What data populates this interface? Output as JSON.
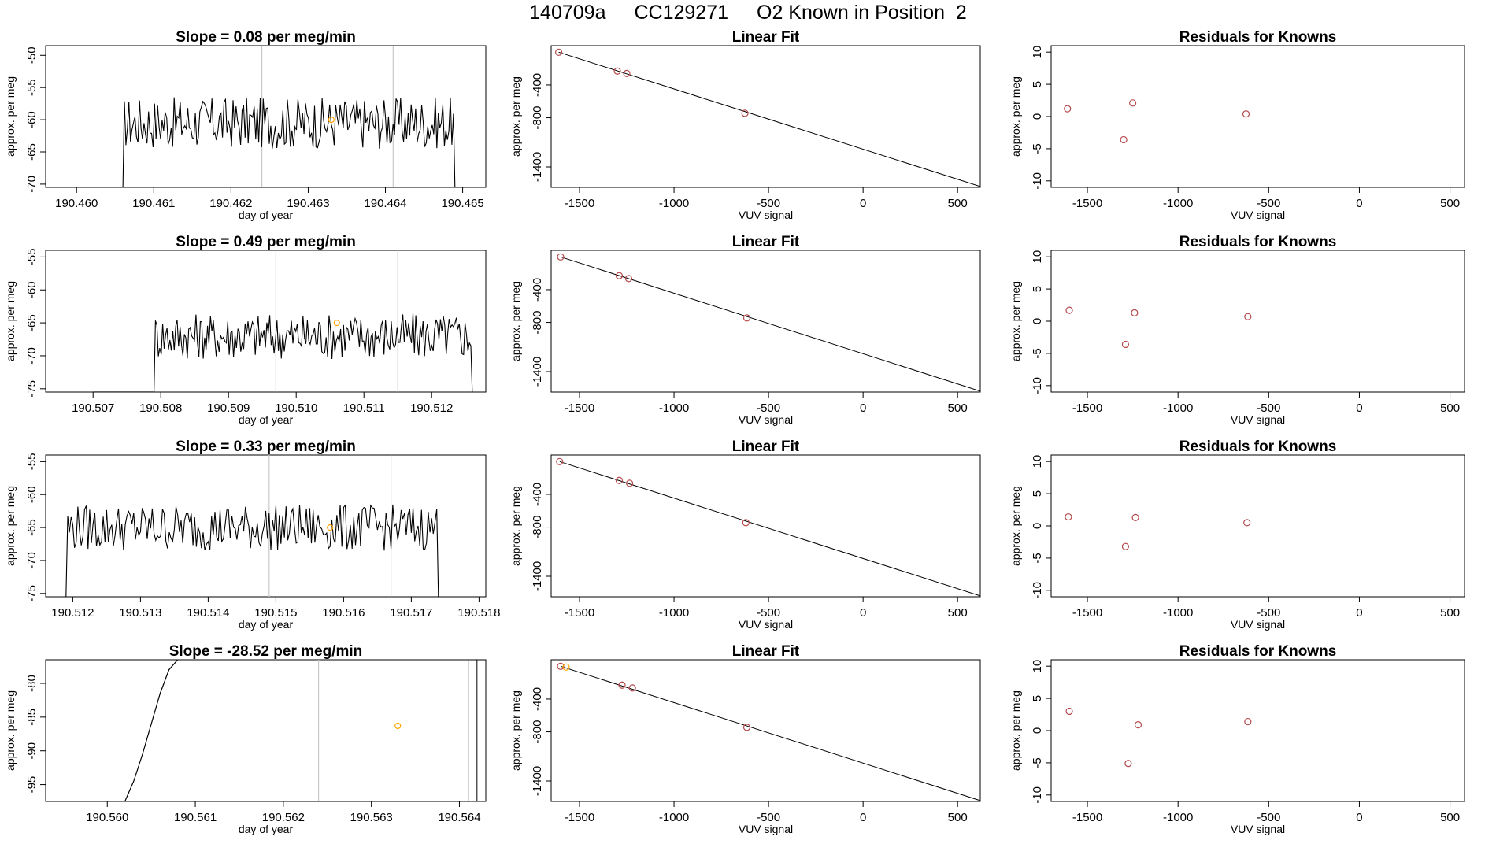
{
  "page_title": {
    "run_id": "140709a",
    "cylinder_id": "CC129271",
    "description": "O2 Known in Position  2"
  },
  "colors": {
    "trace": "#000000",
    "known_points": "#b5494b",
    "highlight_point": "#ffa500",
    "marker_lines": "#c8c8c8"
  },
  "chart_data": [
    {
      "type": "line",
      "panel": "timeseries-1",
      "title": "Slope =  0.08  per meg/min",
      "xlabel": "day of year",
      "ylabel": "approx. per meg",
      "xlim": [
        190.4596,
        190.4653
      ],
      "ylim": [
        -70.5,
        -48.5
      ],
      "xticks": [
        190.46,
        190.461,
        190.462,
        190.463,
        190.464,
        190.465
      ],
      "xtick_labels": [
        "190.460",
        "190.461",
        "190.462",
        "190.463",
        "190.464",
        "190.465"
      ],
      "yticks": [
        -70,
        -65,
        -60,
        -55,
        -50
      ],
      "ytick_labels": [
        "-70",
        "-65",
        "-60",
        "-55",
        "-50"
      ],
      "trace_x_range": [
        190.4606,
        190.4649
      ],
      "trace_y_mean": -60.5,
      "trace_y_amp": 4.0,
      "pre_trace": {
        "x": [
          190.46,
          190.4605,
          190.4606
        ],
        "y": [
          -70.5,
          -70.5,
          -70.5
        ]
      },
      "marker_lines_x": [
        190.4624,
        190.4641
      ],
      "highlight_point": {
        "x": 190.4633,
        "y": -60.0
      }
    },
    {
      "type": "line",
      "panel": "timeseries-2",
      "title": "Slope =  0.49  per meg/min",
      "xlabel": "day of year",
      "ylabel": "approx. per meg",
      "xlim": [
        190.5063,
        190.5128
      ],
      "ylim": [
        -75.5,
        -54.0
      ],
      "xticks": [
        190.507,
        190.508,
        190.509,
        190.51,
        190.511,
        190.512
      ],
      "xtick_labels": [
        "190.507",
        "190.508",
        "190.509",
        "190.510",
        "190.511",
        "190.512"
      ],
      "yticks": [
        -75,
        -70,
        -65,
        -60,
        -55
      ],
      "ytick_labels": [
        "-75",
        "-70",
        "-65",
        "-60",
        "-55"
      ],
      "trace_x_range": [
        190.5079,
        190.5126
      ],
      "trace_y_mean": -67.0,
      "trace_y_amp": 3.5,
      "pre_trace": {
        "x": [
          190.507,
          190.5078,
          190.5079
        ],
        "y": [
          -75.5,
          -75.5,
          -75.5
        ]
      },
      "marker_lines_x": [
        190.5097,
        190.5115
      ],
      "highlight_point": {
        "x": 190.5106,
        "y": -65.0
      }
    },
    {
      "type": "line",
      "panel": "timeseries-3",
      "title": "Slope =  0.33  per meg/min",
      "xlabel": "day of year",
      "ylabel": "approx. per meg",
      "xlim": [
        190.5116,
        190.5181
      ],
      "ylim": [
        -75.5,
        -54.0
      ],
      "xticks": [
        190.512,
        190.513,
        190.514,
        190.515,
        190.516,
        190.517,
        190.518
      ],
      "xtick_labels": [
        "190.512",
        "190.513",
        "190.514",
        "190.515",
        "190.516",
        "190.517",
        "190.518"
      ],
      "yticks": [
        -75,
        -70,
        -65,
        -60,
        -55
      ],
      "ytick_labels": [
        "-75",
        "-70",
        "-65",
        "-60",
        "-55"
      ],
      "trace_x_range": [
        190.5119,
        190.5174
      ],
      "trace_y_mean": -65.0,
      "trace_y_amp": 3.5,
      "pre_trace": null,
      "marker_lines_x": [
        190.5149,
        190.5167
      ],
      "highlight_point": {
        "x": 190.5158,
        "y": -65.0
      }
    },
    {
      "type": "line",
      "panel": "timeseries-4",
      "title": "Slope =  -28.52  per meg/min",
      "xlabel": "day of year",
      "ylabel": "approx. per meg",
      "xlim": [
        190.5593,
        190.5643
      ],
      "ylim": [
        -97.5,
        -76.5
      ],
      "xticks": [
        190.56,
        190.561,
        190.562,
        190.563,
        190.564
      ],
      "xtick_labels": [
        "190.560",
        "190.561",
        "190.562",
        "190.563",
        "190.564"
      ],
      "yticks": [
        -95,
        -90,
        -85,
        -80
      ],
      "ytick_labels": [
        "-95",
        "-90",
        "-85",
        "-80"
      ],
      "ramp": {
        "x": [
          190.5602,
          190.5603,
          190.5604,
          190.5605,
          190.5606,
          190.5607,
          190.5608
        ],
        "y": [
          -97.5,
          -94.5,
          -90.5,
          -86.0,
          -81.5,
          -78.0,
          -76.5
        ]
      },
      "marker_lines_x": [
        190.5624,
        190.5641
      ],
      "extra_lines_x": [
        190.5641,
        190.5642
      ],
      "highlight_point": {
        "x": 190.5633,
        "y": -86.3
      }
    },
    {
      "type": "scatter",
      "panel": "linear-fit-1",
      "title": "Linear Fit",
      "xlabel": "VUV signal",
      "ylabel": "approx. per meg",
      "xlim": [
        -1650,
        620
      ],
      "ylim": [
        -1650,
        80
      ],
      "xticks": [
        -1500,
        -1000,
        -500,
        0,
        500
      ],
      "xtick_labels": [
        "-1500",
        "-1000",
        "-500",
        "0",
        "500"
      ],
      "yticks": [
        -1400,
        -800,
        -400
      ],
      "ytick_labels": [
        "-1400",
        "-800",
        "-400"
      ],
      "x": [
        -1610,
        -1300,
        -1250,
        -625
      ],
      "y": [
        0,
        -230,
        -260,
        -745
      ],
      "fit_line": {
        "x": [
          -1610,
          620
        ],
        "y": [
          0,
          -1640
        ]
      }
    },
    {
      "type": "scatter",
      "panel": "linear-fit-2",
      "title": "Linear Fit",
      "xlabel": "VUV signal",
      "ylabel": "approx. per meg",
      "xlim": [
        -1650,
        620
      ],
      "ylim": [
        -1650,
        80
      ],
      "xticks": [
        -1500,
        -1000,
        -500,
        0,
        500
      ],
      "xtick_labels": [
        "-1500",
        "-1000",
        "-500",
        "0",
        "500"
      ],
      "yticks": [
        -1400,
        -800,
        -400
      ],
      "ytick_labels": [
        "-1400",
        "-800",
        "-400"
      ],
      "x": [
        -1600,
        -1290,
        -1240,
        -615
      ],
      "y": [
        0,
        -230,
        -265,
        -745
      ],
      "fit_line": {
        "x": [
          -1600,
          620
        ],
        "y": [
          0,
          -1640
        ]
      }
    },
    {
      "type": "scatter",
      "panel": "linear-fit-3",
      "title": "Linear Fit",
      "xlabel": "VUV signal",
      "ylabel": "approx. per meg",
      "xlim": [
        -1650,
        620
      ],
      "ylim": [
        -1650,
        80
      ],
      "xticks": [
        -1500,
        -1000,
        -500,
        0,
        500
      ],
      "xtick_labels": [
        "-1500",
        "-1000",
        "-500",
        "0",
        "500"
      ],
      "yticks": [
        -1400,
        -800,
        -400
      ],
      "ytick_labels": [
        "-1400",
        "-800",
        "-400"
      ],
      "x": [
        -1605,
        -1290,
        -1235,
        -620
      ],
      "y": [
        0,
        -230,
        -265,
        -745
      ],
      "fit_line": {
        "x": [
          -1605,
          620
        ],
        "y": [
          0,
          -1640
        ]
      }
    },
    {
      "type": "scatter",
      "panel": "linear-fit-4",
      "title": "Linear Fit",
      "xlabel": "VUV signal",
      "ylabel": "approx. per meg",
      "xlim": [
        -1650,
        620
      ],
      "ylim": [
        -1650,
        80
      ],
      "xticks": [
        -1500,
        -1000,
        -500,
        0,
        500
      ],
      "xtick_labels": [
        "-1500",
        "-1000",
        "-500",
        "0",
        "500"
      ],
      "yticks": [
        -1400,
        -800,
        -400
      ],
      "ytick_labels": [
        "-1400",
        "-800",
        "-400"
      ],
      "x": [
        -1600,
        -1275,
        -1220,
        -615
      ],
      "y": [
        0,
        -230,
        -265,
        -745
      ],
      "fit_line": {
        "x": [
          -1600,
          620
        ],
        "y": [
          0,
          -1640
        ]
      },
      "highlight_x": -1600,
      "highlight_y": 0
    },
    {
      "type": "scatter",
      "panel": "residuals-1",
      "title": "Residuals for Knowns",
      "xlabel": "VUV signal",
      "ylabel": "approx. per meg",
      "xlim": [
        -1700,
        580
      ],
      "ylim": [
        -11,
        11
      ],
      "xticks": [
        -1500,
        -1000,
        -500,
        0,
        500
      ],
      "xtick_labels": [
        "-1500",
        "-1000",
        "-500",
        "0",
        "500"
      ],
      "yticks": [
        -10,
        -5,
        0,
        5,
        10
      ],
      "ytick_labels": [
        "-10",
        "-5",
        "0",
        "5",
        "10"
      ],
      "x": [
        -1610,
        -1300,
        -1250,
        -625
      ],
      "y": [
        1.2,
        -3.6,
        2.1,
        0.4
      ]
    },
    {
      "type": "scatter",
      "panel": "residuals-2",
      "title": "Residuals for Knowns",
      "xlabel": "VUV signal",
      "ylabel": "approx. per meg",
      "xlim": [
        -1700,
        580
      ],
      "ylim": [
        -11,
        11
      ],
      "xticks": [
        -1500,
        -1000,
        -500,
        0,
        500
      ],
      "xtick_labels": [
        "-1500",
        "-1000",
        "-500",
        "0",
        "500"
      ],
      "yticks": [
        -10,
        -5,
        0,
        5,
        10
      ],
      "ytick_labels": [
        "-10",
        "-5",
        "0",
        "5",
        "10"
      ],
      "x": [
        -1600,
        -1290,
        -1240,
        -615
      ],
      "y": [
        1.7,
        -3.6,
        1.3,
        0.7
      ]
    },
    {
      "type": "scatter",
      "panel": "residuals-3",
      "title": "Residuals for Knowns",
      "xlabel": "VUV signal",
      "ylabel": "approx. per meg",
      "xlim": [
        -1700,
        580
      ],
      "ylim": [
        -11,
        11
      ],
      "xticks": [
        -1500,
        -1000,
        -500,
        0,
        500
      ],
      "xtick_labels": [
        "-1500",
        "-1000",
        "-500",
        "0",
        "500"
      ],
      "yticks": [
        -10,
        -5,
        0,
        5,
        10
      ],
      "ytick_labels": [
        "-10",
        "-5",
        "0",
        "5",
        "10"
      ],
      "x": [
        -1605,
        -1290,
        -1235,
        -620
      ],
      "y": [
        1.4,
        -3.2,
        1.3,
        0.5
      ]
    },
    {
      "type": "scatter",
      "panel": "residuals-4",
      "title": "Residuals for Knowns",
      "xlabel": "VUV signal",
      "ylabel": "approx. per meg",
      "xlim": [
        -1700,
        580
      ],
      "ylim": [
        -11,
        11
      ],
      "xticks": [
        -1500,
        -1000,
        -500,
        0,
        500
      ],
      "xtick_labels": [
        "-1500",
        "-1000",
        "-500",
        "0",
        "500"
      ],
      "yticks": [
        -10,
        -5,
        0,
        5,
        10
      ],
      "ytick_labels": [
        "-10",
        "-5",
        "0",
        "5",
        "10"
      ],
      "x": [
        -1600,
        -1275,
        -1220,
        -615
      ],
      "y": [
        3.0,
        -5.1,
        0.9,
        1.4
      ]
    }
  ]
}
